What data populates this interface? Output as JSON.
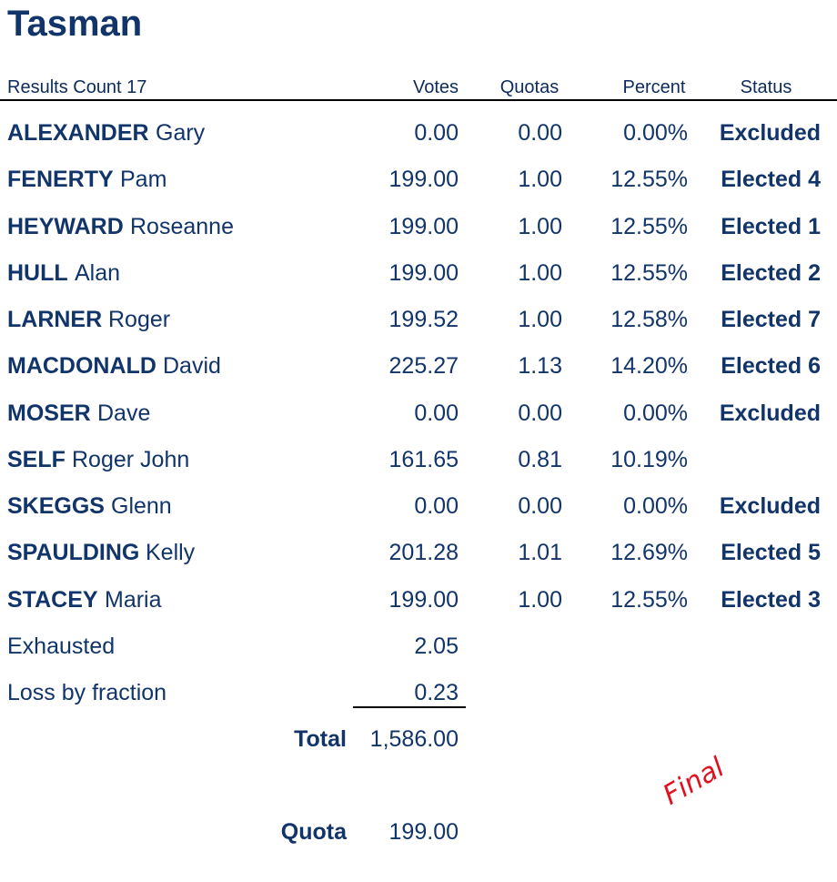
{
  "title": "Tasman",
  "header": {
    "count": "Results Count 17",
    "votes": "Votes",
    "quotas": "Quotas",
    "percent": "Percent",
    "status": "Status"
  },
  "rows": [
    {
      "surname": "ALEXANDER",
      "given": "Gary",
      "votes": "0.00",
      "quotas": "0.00",
      "percent": "0.00%",
      "status": "Excluded"
    },
    {
      "surname": "FENERTY",
      "given": "Pam",
      "votes": "199.00",
      "quotas": "1.00",
      "percent": "12.55%",
      "status": "Elected 4"
    },
    {
      "surname": "HEYWARD",
      "given": "Roseanne",
      "votes": "199.00",
      "quotas": "1.00",
      "percent": "12.55%",
      "status": "Elected 1"
    },
    {
      "surname": "HULL",
      "given": "Alan",
      "votes": "199.00",
      "quotas": "1.00",
      "percent": "12.55%",
      "status": "Elected 2"
    },
    {
      "surname": "LARNER",
      "given": "Roger",
      "votes": "199.52",
      "quotas": "1.00",
      "percent": "12.58%",
      "status": "Elected 7"
    },
    {
      "surname": "MACDONALD",
      "given": "David",
      "votes": "225.27",
      "quotas": "1.13",
      "percent": "14.20%",
      "status": "Elected 6"
    },
    {
      "surname": "MOSER",
      "given": "Dave",
      "votes": "0.00",
      "quotas": "0.00",
      "percent": "0.00%",
      "status": "Excluded"
    },
    {
      "surname": "SELF",
      "given": "Roger John",
      "votes": "161.65",
      "quotas": "0.81",
      "percent": "10.19%"
    },
    {
      "surname": "SKEGGS",
      "given": "Glenn",
      "votes": "0.00",
      "quotas": "0.00",
      "percent": "0.00%",
      "status": "Excluded"
    },
    {
      "surname": "SPAULDING",
      "given": "Kelly",
      "votes": "201.28",
      "quotas": "1.01",
      "percent": "12.69%",
      "status": "Elected 5"
    },
    {
      "surname": "STACEY",
      "given": "Maria",
      "votes": "199.00",
      "quotas": "1.00",
      "percent": "12.55%",
      "status": "Elected 3"
    }
  ],
  "exhausted": {
    "label": "Exhausted",
    "votes": "2.05"
  },
  "loss": {
    "label": "Loss by fraction",
    "votes": "0.23"
  },
  "total": {
    "label": "Total",
    "votes": "1,586.00"
  },
  "quota": {
    "label": "Quota",
    "votes": "199.00"
  },
  "stamp": "Final"
}
